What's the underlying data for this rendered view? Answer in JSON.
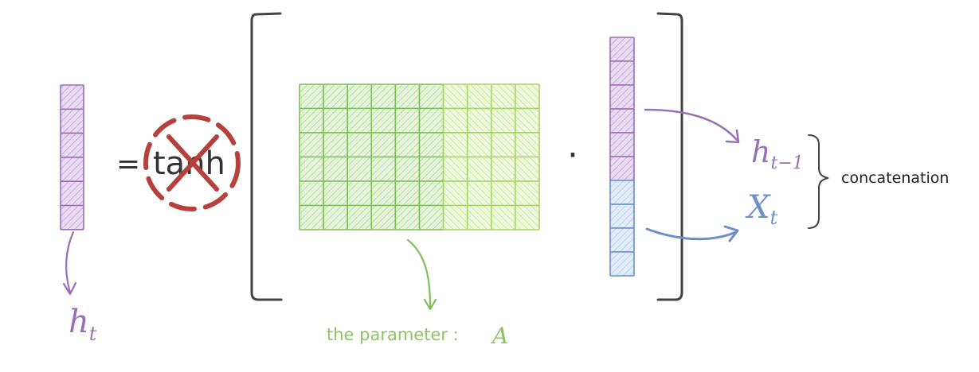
{
  "labels": {
    "equals": "=",
    "tanh": "tanh",
    "dot": "·",
    "h_t_base": "h",
    "h_t_sub": "t",
    "h_prev_base": "h",
    "h_prev_sub": "t−1",
    "x_t_base": "X",
    "x_t_sub": "t",
    "concatenation": "concatenation",
    "parameter_text": "the parameter :",
    "parameter_symbol": "A"
  },
  "colors": {
    "purple": "#9b6fb5",
    "purple_fill": "#d9c4ea",
    "green": "#7fbf5a",
    "green_fill": "#d6edc6",
    "green_fill_light": "#e8f6d4",
    "blue": "#6c8fc7",
    "blue_fill": "#cfe0f5",
    "red": "#b5403c",
    "dark": "#333333",
    "bracket": "#444444"
  },
  "ht_vector": {
    "cells": 6
  },
  "matrix": {
    "rows": 6,
    "cols": 10
  },
  "concat_vector": {
    "purple_cells": 6,
    "blue_cells": 4
  },
  "icons": [
    "cross-out-icon"
  ]
}
